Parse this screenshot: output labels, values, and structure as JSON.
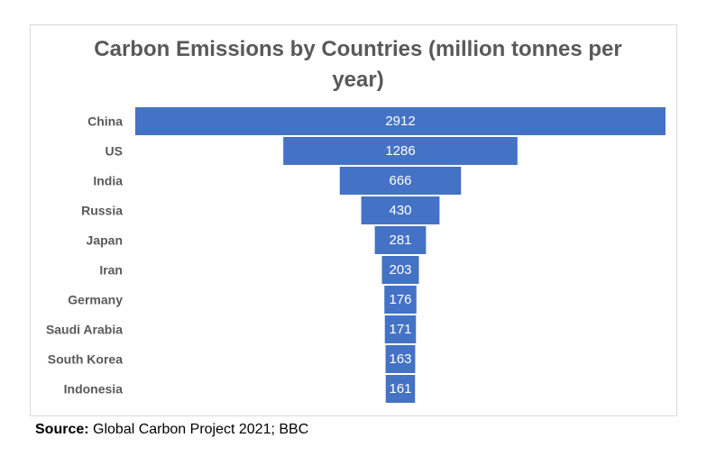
{
  "chart_data": {
    "type": "bar",
    "subtype": "funnel",
    "title_lines": [
      "Carbon Emissions by Countries (million tonnes per",
      "year)"
    ],
    "categories": [
      "China",
      "US",
      "India",
      "Russia",
      "Japan",
      "Iran",
      "Germany",
      "Saudi Arabia",
      "South Korea",
      "Indonesia"
    ],
    "values": [
      2912,
      1286,
      666,
      430,
      281,
      203,
      176,
      171,
      163,
      161
    ],
    "bar_color": "#4472c4",
    "label_color": "#ffffff",
    "category_label_color": "#595959"
  },
  "source": {
    "label": "Source:",
    "text": " Global Carbon Project 2021; BBC"
  }
}
